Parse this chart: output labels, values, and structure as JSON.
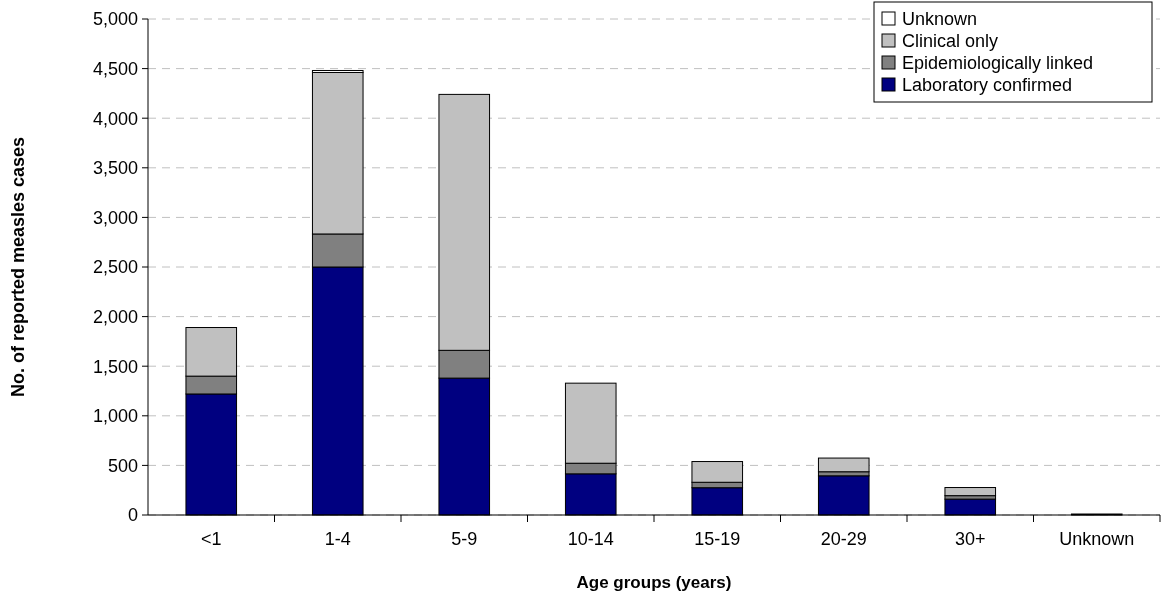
{
  "chart_data": {
    "type": "bar",
    "stacked": true,
    "xlabel": "Age groups (years)",
    "ylabel": "No. of reported measles cases",
    "categories": [
      "<1",
      "1-4",
      "5-9",
      "10-14",
      "15-19",
      "20-29",
      "30+",
      "Unknown"
    ],
    "series": [
      {
        "name": "Laboratory confirmed",
        "color": "#000080",
        "values": [
          1220,
          2500,
          1380,
          415,
          275,
          395,
          160,
          10
        ]
      },
      {
        "name": "Epidemiologically linked",
        "color": "#808080",
        "values": [
          180,
          333,
          280,
          107,
          55,
          41,
          35,
          0
        ]
      },
      {
        "name": "Clinical only",
        "color": "#c0c0c0",
        "values": [
          490,
          1628,
          2580,
          807,
          209,
          138,
          82,
          0
        ]
      },
      {
        "name": "Unknown",
        "color": "#ffffff",
        "values": [
          0,
          20,
          0,
          0,
          0,
          0,
          0,
          0
        ]
      }
    ],
    "ylim": [
      0,
      5000
    ],
    "yticks": [
      {
        "value": 0,
        "label": "0"
      },
      {
        "value": 500,
        "label": "500"
      },
      {
        "value": 1000,
        "label": "1,000"
      },
      {
        "value": 1500,
        "label": "1,500"
      },
      {
        "value": 2000,
        "label": "2,000"
      },
      {
        "value": 2500,
        "label": "2,500"
      },
      {
        "value": 3000,
        "label": "3,000"
      },
      {
        "value": 3500,
        "label": "3,500"
      },
      {
        "value": 4000,
        "label": "4,000"
      },
      {
        "value": 4500,
        "label": "4,500"
      },
      {
        "value": 5000,
        "label": "5,000"
      }
    ],
    "grid": "y",
    "legend": "top right"
  }
}
